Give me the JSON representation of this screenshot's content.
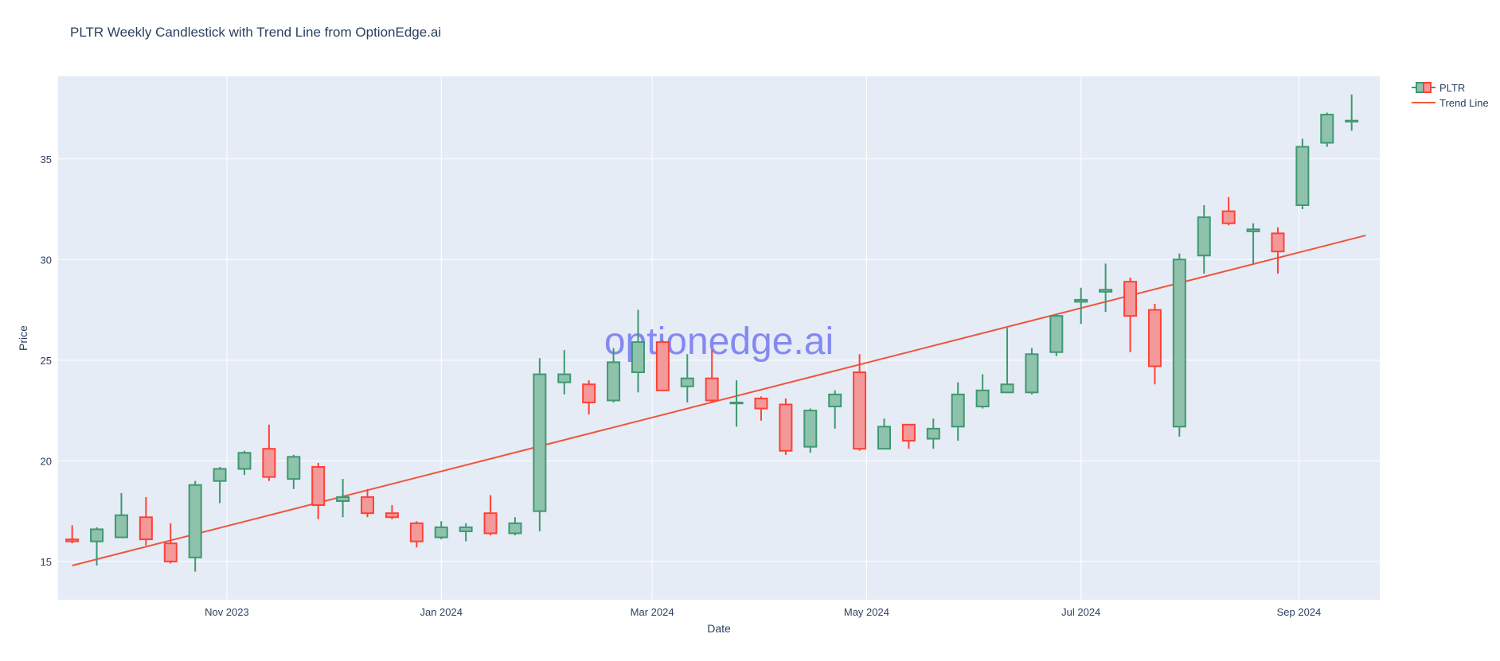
{
  "chart_data": {
    "type": "candlestick",
    "title": "PLTR Weekly Candlestick with Trend Line from OptionEdge.ai",
    "xlabel": "Date",
    "ylabel": "Price",
    "ylim": [
      13.1,
      39.1
    ],
    "xlim": [
      "2023-09-14",
      "2024-09-24"
    ],
    "grid": true,
    "legend_position": "top-right",
    "watermark": "optionedge.ai",
    "colors": {
      "increasing": "#3d9970",
      "increasing_fill": "#8fc2ad",
      "decreasing": "#ff4136",
      "decreasing_fill": "#f4999a",
      "trend": "#ef553b",
      "plot_bg": "#e5ecf6",
      "watermark": "#7378f0"
    },
    "x_ticks": [
      {
        "date": "2023-11-01",
        "label": "Nov 2023"
      },
      {
        "date": "2024-01-01",
        "label": "Jan 2024"
      },
      {
        "date": "2024-03-01",
        "label": "Mar 2024"
      },
      {
        "date": "2024-05-01",
        "label": "May 2024"
      },
      {
        "date": "2024-07-01",
        "label": "Jul 2024"
      },
      {
        "date": "2024-09-01",
        "label": "Sep 2024"
      }
    ],
    "y_ticks": [
      15,
      20,
      25,
      30,
      35
    ],
    "series": [
      {
        "name": "PLTR",
        "kind": "candlestick",
        "x": [
          "2023-09-18",
          "2023-09-25",
          "2023-10-02",
          "2023-10-09",
          "2023-10-16",
          "2023-10-23",
          "2023-10-30",
          "2023-11-06",
          "2023-11-13",
          "2023-11-20",
          "2023-11-27",
          "2023-12-04",
          "2023-12-11",
          "2023-12-18",
          "2023-12-25",
          "2024-01-01",
          "2024-01-08",
          "2024-01-15",
          "2024-01-22",
          "2024-01-29",
          "2024-02-05",
          "2024-02-12",
          "2024-02-19",
          "2024-02-26",
          "2024-03-04",
          "2024-03-11",
          "2024-03-18",
          "2024-03-25",
          "2024-04-01",
          "2024-04-08",
          "2024-04-15",
          "2024-04-22",
          "2024-04-29",
          "2024-05-06",
          "2024-05-13",
          "2024-05-20",
          "2024-05-27",
          "2024-06-03",
          "2024-06-10",
          "2024-06-17",
          "2024-06-24",
          "2024-07-01",
          "2024-07-08",
          "2024-07-15",
          "2024-07-22",
          "2024-07-29",
          "2024-08-05",
          "2024-08-12",
          "2024-08-19",
          "2024-08-26",
          "2024-09-02",
          "2024-09-09",
          "2024-09-16"
        ],
        "open": [
          16.1,
          16.0,
          16.2,
          17.2,
          15.9,
          15.2,
          19.0,
          19.6,
          20.6,
          19.1,
          19.7,
          18.0,
          18.2,
          17.4,
          16.9,
          16.2,
          16.5,
          17.4,
          16.4,
          17.5,
          23.9,
          23.8,
          23.0,
          24.4,
          25.9,
          23.7,
          24.1,
          22.9,
          23.1,
          22.8,
          20.7,
          22.7,
          24.4,
          20.6,
          21.8,
          21.1,
          21.7,
          22.7,
          23.4,
          23.4,
          25.4,
          27.9,
          28.4,
          28.9,
          27.5,
          21.7,
          30.2,
          32.4,
          31.4,
          31.3,
          32.7,
          35.8,
          36.9
        ],
        "high": [
          16.8,
          16.7,
          18.4,
          18.2,
          16.9,
          19.0,
          19.7,
          20.5,
          21.8,
          20.3,
          19.9,
          19.1,
          18.6,
          17.8,
          17.0,
          17.0,
          16.9,
          18.3,
          17.2,
          25.1,
          25.5,
          24.0,
          25.6,
          27.5,
          26.0,
          25.3,
          25.5,
          24.0,
          23.2,
          23.1,
          22.6,
          23.5,
          25.3,
          22.1,
          21.8,
          22.1,
          23.9,
          24.3,
          26.6,
          25.6,
          27.3,
          28.6,
          29.8,
          29.1,
          27.8,
          30.3,
          32.7,
          33.1,
          31.8,
          31.6,
          36.0,
          37.3,
          38.2
        ],
        "low": [
          15.9,
          14.8,
          16.2,
          15.8,
          14.9,
          14.5,
          17.9,
          19.3,
          19.0,
          18.6,
          17.1,
          17.2,
          17.2,
          17.1,
          15.7,
          16.1,
          16.0,
          16.3,
          16.3,
          16.5,
          23.3,
          22.3,
          22.9,
          23.4,
          23.5,
          22.9,
          22.9,
          21.7,
          22.0,
          20.3,
          20.4,
          21.6,
          20.5,
          20.6,
          20.6,
          20.6,
          21.0,
          22.6,
          23.4,
          23.3,
          25.2,
          26.8,
          27.4,
          25.4,
          23.8,
          21.2,
          29.3,
          31.7,
          29.8,
          29.3,
          32.5,
          35.6,
          36.4
        ],
        "close": [
          16.0,
          16.6,
          17.3,
          16.1,
          15.0,
          18.8,
          19.6,
          20.4,
          19.2,
          20.2,
          17.8,
          18.2,
          17.4,
          17.2,
          16.0,
          16.7,
          16.7,
          16.4,
          16.9,
          24.3,
          24.3,
          22.9,
          24.9,
          25.9,
          23.5,
          24.1,
          23.0,
          22.9,
          22.6,
          20.5,
          22.5,
          23.3,
          20.6,
          21.7,
          21.0,
          21.6,
          23.3,
          23.5,
          23.8,
          25.3,
          27.2,
          28.0,
          28.5,
          27.2,
          24.7,
          30.0,
          32.1,
          31.8,
          31.5,
          30.4,
          35.6,
          37.2,
          36.9
        ]
      },
      {
        "name": "Trend Line",
        "kind": "line",
        "x": [
          "2023-09-18",
          "2024-09-20"
        ],
        "y": [
          14.8,
          31.2
        ]
      }
    ]
  }
}
